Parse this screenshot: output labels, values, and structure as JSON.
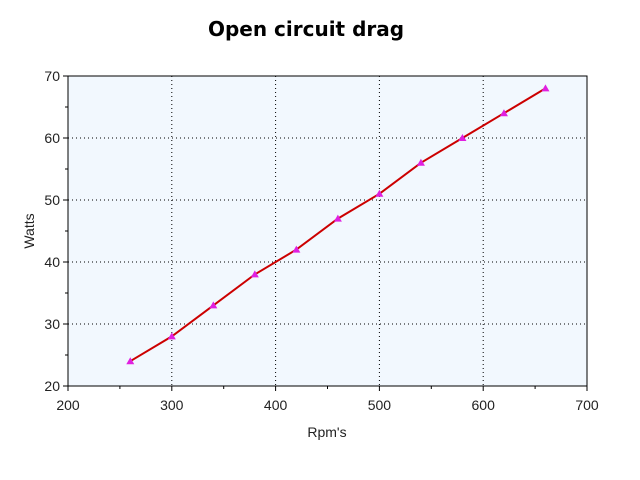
{
  "chart_data": {
    "type": "line",
    "title": "Open circuit drag",
    "xlabel": "Rpm's",
    "ylabel": "Watts",
    "xlim": [
      200,
      700
    ],
    "ylim": [
      20,
      70
    ],
    "xticks": [
      200,
      300,
      400,
      500,
      600,
      700
    ],
    "yticks": [
      20,
      30,
      40,
      50,
      60,
      70
    ],
    "grid": true,
    "legend": "none",
    "series": [
      {
        "x": [
          260,
          300,
          340,
          380,
          420,
          460,
          500,
          540,
          580,
          620,
          660
        ],
        "y": [
          24,
          28,
          33,
          38,
          42,
          47,
          51,
          56,
          60,
          64,
          68
        ],
        "line_color": "#cc0000",
        "marker_color": "#e020e0",
        "marker": "triangle"
      }
    ],
    "plot_background": "#f2f8fe"
  }
}
